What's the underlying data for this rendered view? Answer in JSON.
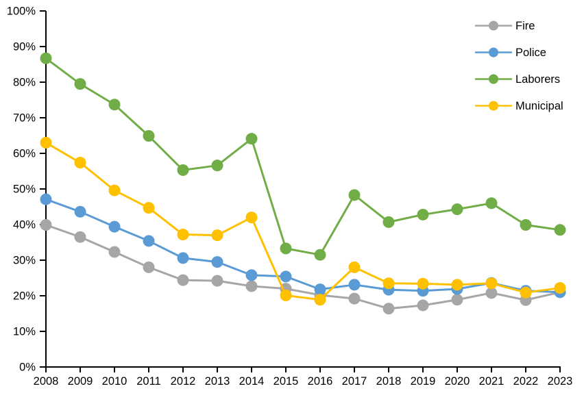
{
  "chart_data": {
    "type": "line",
    "title": "",
    "xlabel": "",
    "ylabel": "",
    "x": [
      2008,
      2009,
      2010,
      2011,
      2012,
      2013,
      2014,
      2015,
      2016,
      2017,
      2018,
      2019,
      2020,
      2021,
      2022,
      2023
    ],
    "xtick_labels": [
      "2008",
      "2009",
      "2010",
      "2011",
      "2012",
      "2013",
      "2014",
      "2015",
      "2016",
      "2017",
      "2018",
      "2019",
      "2020",
      "2021",
      "2022",
      "2023"
    ],
    "series": [
      {
        "name": "Fire",
        "color": "#a6a6a6",
        "values": [
          39.9,
          36.5,
          32.3,
          28.0,
          24.4,
          24.2,
          22.7,
          22.0,
          20.2,
          19.2,
          16.4,
          17.3,
          18.9,
          20.8,
          18.8,
          21.0
        ]
      },
      {
        "name": "Police",
        "color": "#5b9bd5",
        "values": [
          47.1,
          43.6,
          39.4,
          35.4,
          30.6,
          29.5,
          25.8,
          25.4,
          21.8,
          23.1,
          21.7,
          21.4,
          21.9,
          23.6,
          21.4,
          21.0
        ]
      },
      {
        "name": "Laborers",
        "color": "#70ad47",
        "values": [
          86.7,
          79.5,
          73.7,
          64.9,
          55.3,
          56.6,
          64.1,
          33.3,
          31.5,
          48.3,
          40.7,
          42.8,
          44.3,
          46.0,
          39.9,
          38.5
        ]
      },
      {
        "name": "Municipal",
        "color": "#ffc000",
        "values": [
          63.0,
          57.4,
          49.6,
          44.7,
          37.2,
          37.0,
          42.0,
          20.1,
          18.9,
          28.0,
          23.5,
          23.4,
          23.1,
          23.5,
          20.9,
          22.2
        ]
      }
    ],
    "ylim": [
      0,
      100
    ],
    "ytick_step": 10,
    "ytick_labels": [
      "0%",
      "10%",
      "20%",
      "30%",
      "40%",
      "50%",
      "60%",
      "70%",
      "80%",
      "90%",
      "100%"
    ],
    "grid": false,
    "legend_position": "top-right-inside",
    "legend_entries": [
      "Fire",
      "Police",
      "Laborers",
      "Municipal"
    ],
    "axis_color": "#000000",
    "marker": "circle"
  }
}
